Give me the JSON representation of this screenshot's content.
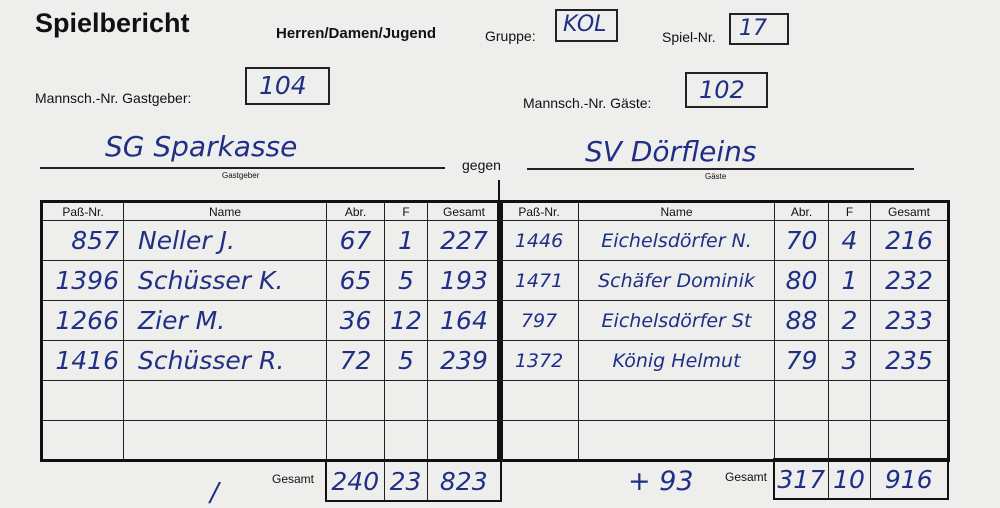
{
  "header": {
    "title": "Spielbericht",
    "category": "Herren/Damen/Jugend",
    "gruppe_label": "Gruppe:",
    "gruppe_value": "KOL",
    "spiel_nr_label": "Spiel-Nr.",
    "spiel_nr_value": "17"
  },
  "teams": {
    "host_nr_label": "Mannsch.-Nr. Gastgeber:",
    "host_nr_value": "104",
    "guest_nr_label": "Mannsch.-Nr. Gäste:",
    "guest_nr_value": "102",
    "host_name": "SG Sparkasse",
    "host_caption": "Gastgeber",
    "vs": "gegen",
    "guest_name": "SV Dörfleins",
    "guest_caption": "Gäste"
  },
  "columns": [
    "Paß-Nr.",
    "Name",
    "Abr.",
    "F",
    "Gesamt"
  ],
  "host_rows": [
    {
      "pass": "857",
      "name": "Neller J.",
      "abr": "67",
      "f": "1",
      "gesamt": "227"
    },
    {
      "pass": "1396",
      "name": "Schüsser K.",
      "abr": "65",
      "f": "5",
      "gesamt": "193"
    },
    {
      "pass": "1266",
      "name": "Zier M.",
      "abr": "36",
      "f": "12",
      "gesamt": "164"
    },
    {
      "pass": "1416",
      "name": "Schüsser R.",
      "abr": "72",
      "f": "5",
      "gesamt": "239"
    }
  ],
  "guest_rows": [
    {
      "pass": "1446",
      "name": "Eichelsdörfer N.",
      "abr": "70",
      "f": "4",
      "gesamt": "216"
    },
    {
      "pass": "1471",
      "name": "Schäfer Dominik",
      "abr": "80",
      "f": "1",
      "gesamt": "232"
    },
    {
      "pass": "797",
      "name": "Eichelsdörfer St",
      "abr": "88",
      "f": "2",
      "gesamt": "233"
    },
    {
      "pass": "1372",
      "name": "König Helmut",
      "abr": "79",
      "f": "3",
      "gesamt": "235"
    }
  ],
  "host_total": {
    "label": "Gesamt",
    "abr": "240",
    "f": "23",
    "gesamt": "823"
  },
  "guest_total": {
    "label": "Gesamt",
    "abr": "317",
    "f": "10",
    "gesamt": "916",
    "difference": "+ 93"
  }
}
